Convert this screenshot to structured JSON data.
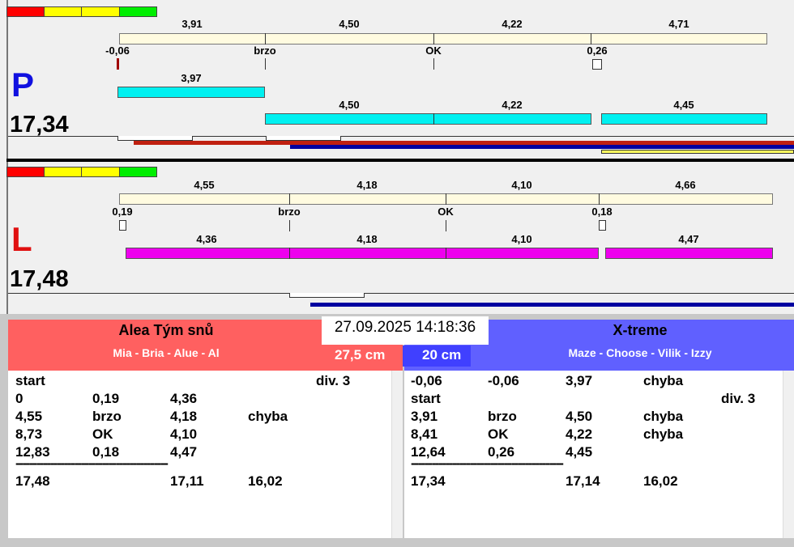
{
  "lanes": [
    {
      "letter": "P",
      "total": "17,34",
      "top_labels": [
        "3,91",
        "4,50",
        "4,22",
        "4,71"
      ],
      "mid_labels": [
        "-0,06",
        "brzo",
        "OK",
        "0,26"
      ],
      "bar_labels": [
        "3,97",
        "4,50",
        "4,22",
        "4,45"
      ]
    },
    {
      "letter": "L",
      "total": "17,48",
      "top_labels": [
        "4,55",
        "4,18",
        "4,10",
        "4,66"
      ],
      "mid_labels": [
        "0,19",
        "brzo",
        "OK",
        "0,18"
      ],
      "bar_labels": [
        "4,36",
        "4,18",
        "4,10",
        "4,47"
      ]
    }
  ],
  "timestamp": "27.09.2025 14:18:36",
  "teams": [
    {
      "name": "Alea Tým snů",
      "members": "Mia - Bria - Alue - Al",
      "height": "27,5 cm",
      "rows": [
        {
          "cells": [
            "start"
          ],
          "division": "div.  3"
        },
        {
          "cells": [
            "0",
            "0,19",
            "4,36"
          ]
        },
        {
          "cells": [
            "4,55",
            "brzo",
            "4,18",
            "chyba"
          ]
        },
        {
          "cells": [
            "8,73",
            "OK",
            "4,10"
          ]
        },
        {
          "cells": [
            "12,83",
            "0,18",
            "4,47"
          ]
        }
      ],
      "separator": "--------------------------------------------",
      "totals": {
        "time": "17,48",
        "sum": "17,11",
        "limit": "16,02"
      }
    },
    {
      "name": "X-treme",
      "members": "Maze - Choose - Vilik - Izzy",
      "height": "20 cm",
      "rows": [
        {
          "cells": [
            "-0,06",
            "-0,06",
            "3,97",
            "chyba"
          ]
        },
        {
          "cells": [
            "start"
          ],
          "division": "div.  3"
        },
        {
          "cells": [
            "3,91",
            "brzo",
            "4,50",
            "chyba"
          ]
        },
        {
          "cells": [
            "8,41",
            "OK",
            "4,22",
            "chyba"
          ]
        },
        {
          "cells": [
            "12,64",
            "0,26",
            "4,45"
          ]
        }
      ],
      "separator": "--------------------------------------------",
      "totals": {
        "time": "17,34",
        "sum": "17,14",
        "limit": "16,02"
      }
    }
  ]
}
